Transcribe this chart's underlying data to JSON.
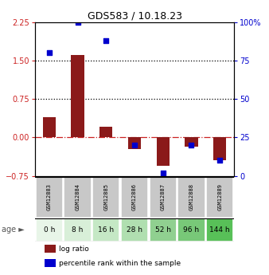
{
  "title": "GDS583 / 10.18.23",
  "samples": [
    "GSM12883",
    "GSM12884",
    "GSM12885",
    "GSM12886",
    "GSM12887",
    "GSM12888",
    "GSM12889"
  ],
  "ages": [
    "0 h",
    "8 h",
    "16 h",
    "28 h",
    "52 h",
    "96 h",
    "144 h"
  ],
  "log_ratio": [
    0.4,
    1.6,
    0.2,
    -0.23,
    -0.55,
    -0.18,
    -0.45
  ],
  "percentile_rank": [
    80,
    100,
    88,
    20,
    2,
    20,
    10
  ],
  "ylim_left": [
    -0.75,
    2.25
  ],
  "ylim_right": [
    0,
    100
  ],
  "yticks_left": [
    -0.75,
    0,
    0.75,
    1.5,
    2.25
  ],
  "yticks_right": [
    0,
    25,
    50,
    75,
    100
  ],
  "hlines": [
    0.75,
    1.5
  ],
  "bar_color_red": "#8B1A1A",
  "dot_color_blue": "#0000CD",
  "age_bg_colors": [
    "#d8f0d8",
    "#d8f0d8",
    "#c0e8c0",
    "#c0e8c0",
    "#90d890",
    "#90d890",
    "#6cd06c"
  ],
  "sample_bg": "#c8c8c8",
  "zero_line_color": "#cc2222",
  "dotted_line_color": "#000000",
  "legend_red_label": "log ratio",
  "legend_blue_label": "percentile rank within the sample",
  "bar_width": 0.45
}
